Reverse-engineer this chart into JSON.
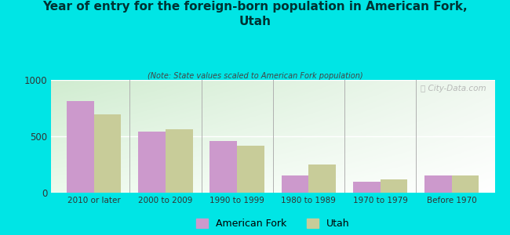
{
  "title": "Year of entry for the foreign-born population in American Fork,\nUtah",
  "subtitle": "(Note: State values scaled to American Fork population)",
  "categories": [
    "2010 or later",
    "2000 to 2009",
    "1990 to 1999",
    "1980 to 1989",
    "1970 to 1979",
    "Before 1970"
  ],
  "american_fork_values": [
    810,
    545,
    455,
    155,
    95,
    150
  ],
  "utah_values": [
    695,
    565,
    415,
    250,
    120,
    155
  ],
  "american_fork_color": "#cc99cc",
  "utah_color": "#c8cc99",
  "background_color": "#00e5e5",
  "ylim": [
    0,
    1000
  ],
  "yticks": [
    0,
    500,
    1000
  ],
  "bar_width": 0.38,
  "legend_labels": [
    "American Fork",
    "Utah"
  ],
  "watermark": "Ⓢ City-Data.com"
}
